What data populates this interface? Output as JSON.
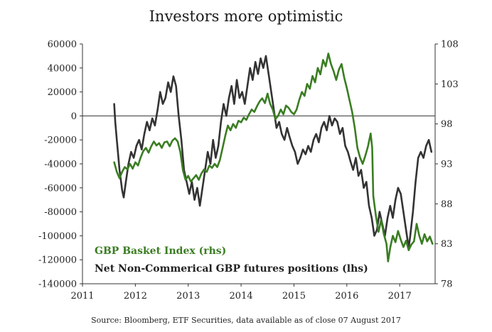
{
  "chart_data": {
    "type": "line",
    "title": "Investors more optimistic",
    "source": "Source: Bloomberg, ETF Securities, data available as of close 07 August 2017",
    "x_ticks": [
      "2011",
      "2012",
      "2013",
      "2014",
      "2015",
      "2016",
      "2017"
    ],
    "x_range": [
      2011.0,
      2017.67
    ],
    "y_left": {
      "label": "lhs",
      "ylim": [
        -140000,
        60000
      ],
      "ticks": [
        "60000",
        "40000",
        "20000",
        "0",
        "-20000",
        "-40000",
        "-60000",
        "-80000",
        "-100000",
        "-120000",
        "-140000"
      ]
    },
    "y_right": {
      "label": "rhs",
      "ylim": [
        78,
        108
      ],
      "ticks": [
        "108",
        "103",
        "98",
        "93",
        "88",
        "83",
        "78"
      ]
    },
    "series": [
      {
        "name": "Net Non-Commerical GBP futures positions (lhs)",
        "axis": "left",
        "color": "#333333",
        "points": [
          [
            2011.6,
            10000
          ],
          [
            2011.62,
            -5000
          ],
          [
            2011.65,
            -20000
          ],
          [
            2011.7,
            -45000
          ],
          [
            2011.75,
            -62000
          ],
          [
            2011.78,
            -68000
          ],
          [
            2011.82,
            -55000
          ],
          [
            2011.87,
            -40000
          ],
          [
            2011.92,
            -30000
          ],
          [
            2011.97,
            -35000
          ],
          [
            2012.02,
            -25000
          ],
          [
            2012.07,
            -20000
          ],
          [
            2012.12,
            -28000
          ],
          [
            2012.17,
            -15000
          ],
          [
            2012.22,
            -5000
          ],
          [
            2012.27,
            -12000
          ],
          [
            2012.32,
            -2000
          ],
          [
            2012.37,
            -8000
          ],
          [
            2012.42,
            5000
          ],
          [
            2012.47,
            20000
          ],
          [
            2012.52,
            10000
          ],
          [
            2012.57,
            15000
          ],
          [
            2012.62,
            28000
          ],
          [
            2012.67,
            20000
          ],
          [
            2012.72,
            33000
          ],
          [
            2012.77,
            25000
          ],
          [
            2012.82,
            0
          ],
          [
            2012.87,
            -20000
          ],
          [
            2012.92,
            -45000
          ],
          [
            2012.97,
            -55000
          ],
          [
            2013.02,
            -65000
          ],
          [
            2013.07,
            -55000
          ],
          [
            2013.12,
            -70000
          ],
          [
            2013.17,
            -60000
          ],
          [
            2013.22,
            -75000
          ],
          [
            2013.27,
            -60000
          ],
          [
            2013.32,
            -45000
          ],
          [
            2013.37,
            -30000
          ],
          [
            2013.42,
            -40000
          ],
          [
            2013.47,
            -20000
          ],
          [
            2013.52,
            -35000
          ],
          [
            2013.57,
            -25000
          ],
          [
            2013.62,
            -5000
          ],
          [
            2013.67,
            10000
          ],
          [
            2013.72,
            0
          ],
          [
            2013.77,
            15000
          ],
          [
            2013.82,
            25000
          ],
          [
            2013.87,
            10000
          ],
          [
            2013.92,
            30000
          ],
          [
            2013.97,
            15000
          ],
          [
            2014.02,
            20000
          ],
          [
            2014.07,
            10000
          ],
          [
            2014.12,
            25000
          ],
          [
            2014.17,
            40000
          ],
          [
            2014.22,
            30000
          ],
          [
            2014.27,
            45000
          ],
          [
            2014.32,
            35000
          ],
          [
            2014.37,
            48000
          ],
          [
            2014.42,
            40000
          ],
          [
            2014.47,
            50000
          ],
          [
            2014.52,
            35000
          ],
          [
            2014.57,
            20000
          ],
          [
            2014.62,
            5000
          ],
          [
            2014.67,
            -10000
          ],
          [
            2014.72,
            -5000
          ],
          [
            2014.77,
            -15000
          ],
          [
            2014.82,
            -20000
          ],
          [
            2014.87,
            -10000
          ],
          [
            2014.92,
            -18000
          ],
          [
            2014.97,
            -25000
          ],
          [
            2015.02,
            -30000
          ],
          [
            2015.07,
            -40000
          ],
          [
            2015.12,
            -35000
          ],
          [
            2015.17,
            -28000
          ],
          [
            2015.22,
            -32000
          ],
          [
            2015.27,
            -25000
          ],
          [
            2015.32,
            -30000
          ],
          [
            2015.37,
            -20000
          ],
          [
            2015.42,
            -15000
          ],
          [
            2015.47,
            -22000
          ],
          [
            2015.52,
            -10000
          ],
          [
            2015.57,
            -5000
          ],
          [
            2015.62,
            -12000
          ],
          [
            2015.67,
            0
          ],
          [
            2015.72,
            -8000
          ],
          [
            2015.77,
            -2000
          ],
          [
            2015.82,
            -5000
          ],
          [
            2015.87,
            -15000
          ],
          [
            2015.92,
            -10000
          ],
          [
            2015.97,
            -25000
          ],
          [
            2016.02,
            -30000
          ],
          [
            2016.07,
            -38000
          ],
          [
            2016.12,
            -45000
          ],
          [
            2016.17,
            -35000
          ],
          [
            2016.22,
            -50000
          ],
          [
            2016.27,
            -45000
          ],
          [
            2016.32,
            -60000
          ],
          [
            2016.37,
            -55000
          ],
          [
            2016.42,
            -75000
          ],
          [
            2016.47,
            -85000
          ],
          [
            2016.52,
            -100000
          ],
          [
            2016.57,
            -95000
          ],
          [
            2016.62,
            -80000
          ],
          [
            2016.67,
            -90000
          ],
          [
            2016.72,
            -100000
          ],
          [
            2016.77,
            -85000
          ],
          [
            2016.82,
            -75000
          ],
          [
            2016.87,
            -85000
          ],
          [
            2016.92,
            -70000
          ],
          [
            2016.97,
            -60000
          ],
          [
            2017.02,
            -65000
          ],
          [
            2017.07,
            -80000
          ],
          [
            2017.12,
            -95000
          ],
          [
            2017.17,
            -110000
          ],
          [
            2017.2,
            -100000
          ],
          [
            2017.25,
            -80000
          ],
          [
            2017.3,
            -55000
          ],
          [
            2017.35,
            -35000
          ],
          [
            2017.4,
            -30000
          ],
          [
            2017.45,
            -35000
          ],
          [
            2017.5,
            -25000
          ],
          [
            2017.55,
            -20000
          ],
          [
            2017.6,
            -30000
          ]
        ]
      },
      {
        "name": "GBP Basket Index (rhs)",
        "axis": "right",
        "color": "#3a7d22",
        "points": [
          [
            2011.6,
            93.2
          ],
          [
            2011.65,
            92.0
          ],
          [
            2011.7,
            91.2
          ],
          [
            2011.75,
            92.0
          ],
          [
            2011.8,
            92.6
          ],
          [
            2011.85,
            92.3
          ],
          [
            2011.9,
            93.0
          ],
          [
            2011.95,
            92.4
          ],
          [
            2012.0,
            93.2
          ],
          [
            2012.05,
            92.8
          ],
          [
            2012.1,
            93.8
          ],
          [
            2012.15,
            94.6
          ],
          [
            2012.2,
            95.0
          ],
          [
            2012.25,
            94.4
          ],
          [
            2012.3,
            95.2
          ],
          [
            2012.35,
            95.8
          ],
          [
            2012.4,
            95.3
          ],
          [
            2012.45,
            95.6
          ],
          [
            2012.5,
            95.0
          ],
          [
            2012.55,
            95.7
          ],
          [
            2012.6,
            95.8
          ],
          [
            2012.65,
            95.2
          ],
          [
            2012.7,
            95.9
          ],
          [
            2012.75,
            96.2
          ],
          [
            2012.8,
            95.8
          ],
          [
            2012.85,
            94.5
          ],
          [
            2012.9,
            92.2
          ],
          [
            2012.95,
            91.0
          ],
          [
            2013.0,
            91.5
          ],
          [
            2013.05,
            90.8
          ],
          [
            2013.1,
            91.2
          ],
          [
            2013.15,
            91.6
          ],
          [
            2013.2,
            91.0
          ],
          [
            2013.25,
            91.8
          ],
          [
            2013.3,
            92.3
          ],
          [
            2013.35,
            92.0
          ],
          [
            2013.4,
            92.8
          ],
          [
            2013.45,
            92.5
          ],
          [
            2013.5,
            93.0
          ],
          [
            2013.55,
            92.6
          ],
          [
            2013.6,
            93.5
          ],
          [
            2013.65,
            95.0
          ],
          [
            2013.7,
            96.5
          ],
          [
            2013.75,
            97.8
          ],
          [
            2013.8,
            97.2
          ],
          [
            2013.85,
            98.0
          ],
          [
            2013.9,
            97.5
          ],
          [
            2013.95,
            98.4
          ],
          [
            2014.0,
            98.2
          ],
          [
            2014.05,
            98.8
          ],
          [
            2014.1,
            98.5
          ],
          [
            2014.15,
            99.2
          ],
          [
            2014.2,
            99.8
          ],
          [
            2014.25,
            99.5
          ],
          [
            2014.3,
            100.2
          ],
          [
            2014.35,
            100.8
          ],
          [
            2014.4,
            101.2
          ],
          [
            2014.45,
            100.6
          ],
          [
            2014.5,
            101.8
          ],
          [
            2014.55,
            100.5
          ],
          [
            2014.6,
            99.8
          ],
          [
            2014.65,
            98.6
          ],
          [
            2014.7,
            99.0
          ],
          [
            2014.75,
            99.8
          ],
          [
            2014.8,
            99.2
          ],
          [
            2014.85,
            100.3
          ],
          [
            2014.9,
            100.0
          ],
          [
            2014.95,
            99.5
          ],
          [
            2015.0,
            99.2
          ],
          [
            2015.05,
            99.8
          ],
          [
            2015.1,
            101.0
          ],
          [
            2015.15,
            102.0
          ],
          [
            2015.2,
            101.5
          ],
          [
            2015.25,
            103.0
          ],
          [
            2015.3,
            102.4
          ],
          [
            2015.35,
            104.0
          ],
          [
            2015.4,
            103.2
          ],
          [
            2015.45,
            105.0
          ],
          [
            2015.5,
            104.2
          ],
          [
            2015.55,
            106.0
          ],
          [
            2015.6,
            105.2
          ],
          [
            2015.65,
            106.8
          ],
          [
            2015.7,
            105.5
          ],
          [
            2015.75,
            104.6
          ],
          [
            2015.8,
            103.5
          ],
          [
            2015.85,
            104.8
          ],
          [
            2015.9,
            105.5
          ],
          [
            2015.95,
            103.8
          ],
          [
            2016.0,
            102.5
          ],
          [
            2016.05,
            101.0
          ],
          [
            2016.1,
            99.5
          ],
          [
            2016.15,
            97.5
          ],
          [
            2016.2,
            95.0
          ],
          [
            2016.25,
            93.8
          ],
          [
            2016.3,
            93.0
          ],
          [
            2016.35,
            94.0
          ],
          [
            2016.4,
            95.2
          ],
          [
            2016.45,
            96.8
          ],
          [
            2016.48,
            95.0
          ],
          [
            2016.5,
            89.0
          ],
          [
            2016.55,
            86.5
          ],
          [
            2016.6,
            84.5
          ],
          [
            2016.65,
            86.0
          ],
          [
            2016.7,
            84.2
          ],
          [
            2016.75,
            83.0
          ],
          [
            2016.78,
            80.8
          ],
          [
            2016.82,
            82.5
          ],
          [
            2016.87,
            84.0
          ],
          [
            2016.92,
            83.2
          ],
          [
            2016.97,
            84.6
          ],
          [
            2017.02,
            83.5
          ],
          [
            2017.07,
            82.6
          ],
          [
            2017.12,
            83.4
          ],
          [
            2017.17,
            82.2
          ],
          [
            2017.22,
            82.9
          ],
          [
            2017.27,
            83.3
          ],
          [
            2017.32,
            85.5
          ],
          [
            2017.37,
            84.0
          ],
          [
            2017.42,
            83.0
          ],
          [
            2017.47,
            84.2
          ],
          [
            2017.52,
            83.3
          ],
          [
            2017.57,
            83.9
          ],
          [
            2017.62,
            83.0
          ]
        ]
      }
    ]
  }
}
